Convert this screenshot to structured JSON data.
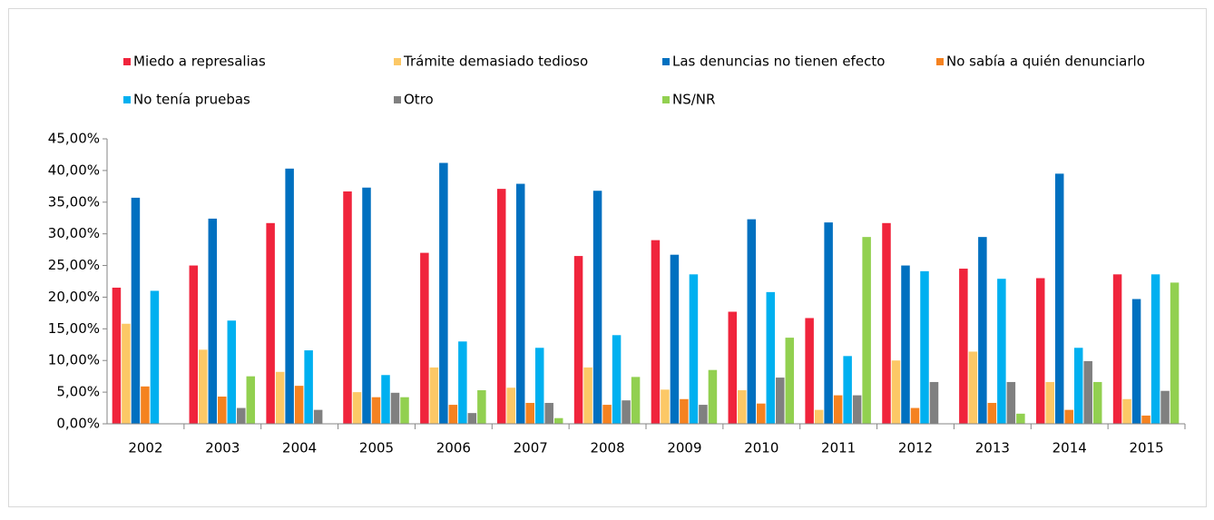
{
  "chart_data": {
    "type": "bar",
    "categories": [
      "2002",
      "2003",
      "2004",
      "2005",
      "2006",
      "2007",
      "2008",
      "2009",
      "2010",
      "2011",
      "2012",
      "2013",
      "2014",
      "2015"
    ],
    "series": [
      {
        "name": "Miedo a represalias",
        "color": "#f0243c",
        "values": [
          21.5,
          25,
          31.7,
          36.7,
          27,
          37.1,
          26.5,
          29,
          17.7,
          16.7,
          31.7,
          24.5,
          23,
          23.6
        ]
      },
      {
        "name": "Trámite demasiado tedioso",
        "color": "#fcc866",
        "values": [
          15.8,
          11.7,
          8.2,
          5,
          8.9,
          5.7,
          8.9,
          5.4,
          5.3,
          2.2,
          10,
          11.4,
          6.6,
          3.9
        ]
      },
      {
        "name": "Las denuncias no tienen efecto",
        "color": "#0070c0",
        "values": [
          35.7,
          32.4,
          40.3,
          37.3,
          41.2,
          37.9,
          36.8,
          26.7,
          32.3,
          31.8,
          25,
          29.5,
          39.5,
          19.7
        ]
      },
      {
        "name": "No sabía a quién denunciarlo",
        "color": "#f58220",
        "values": [
          5.9,
          4.3,
          6,
          4.2,
          3,
          3.3,
          3,
          3.9,
          3.2,
          4.5,
          2.5,
          3.3,
          2.2,
          1.3
        ]
      },
      {
        "name": "No tenía pruebas",
        "color": "#00b0f0",
        "values": [
          21,
          16.3,
          11.6,
          7.7,
          13,
          12,
          14,
          23.6,
          20.8,
          10.7,
          24.1,
          22.9,
          12,
          23.6
        ]
      },
      {
        "name": "Otro",
        "color": "#808080",
        "values": [
          0,
          2.5,
          2.2,
          4.9,
          1.7,
          3.3,
          3.7,
          3,
          7.3,
          4.5,
          6.6,
          6.6,
          9.9,
          5.2
        ]
      },
      {
        "name": "NS/NR",
        "color": "#92d050",
        "values": [
          0,
          7.5,
          0,
          4.2,
          5.3,
          0.9,
          7.4,
          8.5,
          13.6,
          29.5,
          0,
          1.6,
          6.6,
          22.3
        ]
      }
    ],
    "ylim": [
      0,
      45
    ],
    "yticks": [
      {
        "value": 0,
        "label": "0,00%"
      },
      {
        "value": 5,
        "label": "5,00%"
      },
      {
        "value": 10,
        "label": "10,00%"
      },
      {
        "value": 15,
        "label": "15,00%"
      },
      {
        "value": 20,
        "label": "20,00%"
      },
      {
        "value": 25,
        "label": "25,00%"
      },
      {
        "value": 30,
        "label": "30,00%"
      },
      {
        "value": 35,
        "label": "35,00%"
      },
      {
        "value": 40,
        "label": "40,00%"
      },
      {
        "value": 45,
        "label": "45,00%"
      }
    ],
    "legend": "top",
    "grid": false
  }
}
